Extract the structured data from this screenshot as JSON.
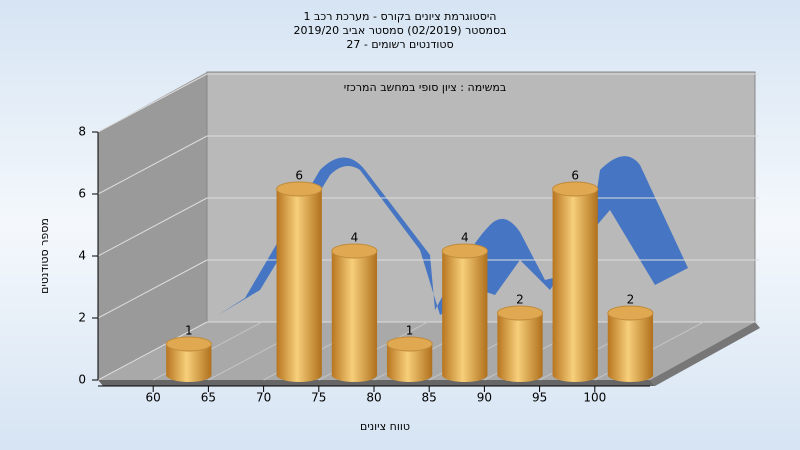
{
  "chart_data": {
    "type": "histogram",
    "title": "היסטוגרמת ציונים בקורס - מערכת רכב 1",
    "subtitle": "בסמסטר  (02/2019)  סמסטר אביב 2019/20",
    "subtitle2": "סטודנטים רשומים - 27",
    "annotation": "במשימה : ציון סופי במחשב המרכזי",
    "x_label": "טווח ציונים",
    "y_label": "מספר סטודנטים",
    "bins": [
      60,
      65,
      70,
      75,
      80,
      85,
      90,
      95,
      100,
      105
    ],
    "counts": [
      1,
      0,
      6,
      4,
      1,
      4,
      2,
      6,
      2
    ],
    "value_labels": [
      "1",
      null,
      "6",
      "4",
      "1",
      "4",
      "2",
      "6",
      "2"
    ],
    "color": "#e0a850",
    "xlim": [
      55,
      105
    ],
    "xticks": [
      60,
      65,
      70,
      75,
      80,
      85,
      90,
      95,
      100
    ],
    "ylim": [
      0,
      8
    ],
    "yticks": [
      0,
      2,
      4,
      6,
      8
    ],
    "grid": true
  }
}
